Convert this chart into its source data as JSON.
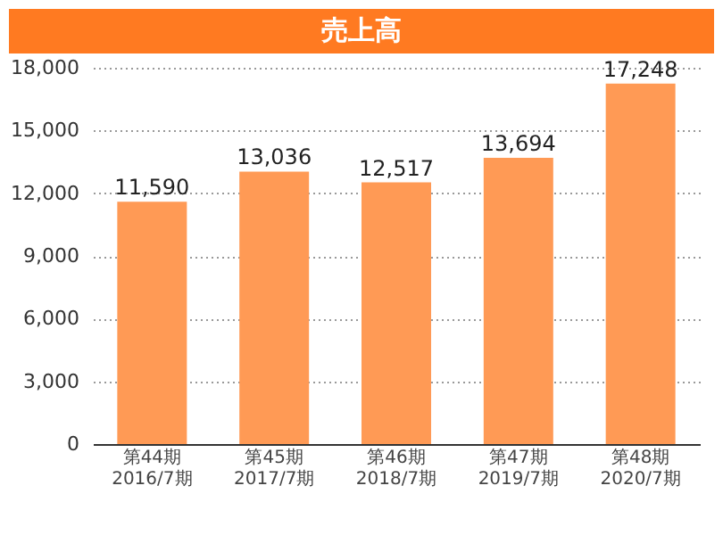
{
  "chart_data": {
    "type": "bar",
    "title": "売上高",
    "categories": [
      "第44期\n2016/7期",
      "第45期\n2017/7期",
      "第46期\n2018/7期",
      "第47期\n2019/7期",
      "第48期\n2020/7期"
    ],
    "values": [
      11590,
      13036,
      12517,
      13694,
      17248
    ],
    "value_labels": [
      "11,590",
      "13,036",
      "12,517",
      "13,694",
      "17,248"
    ],
    "color": "#ff9a55",
    "ylim": [
      0,
      18000
    ],
    "yticks": [
      0,
      {
        "value": 3000,
        "label": "3,000"
      },
      {
        "value": 6000,
        "label": "6,000"
      },
      {
        "value": 9000,
        "label": "9,000"
      },
      {
        "value": 12000,
        "label": "12,000"
      },
      {
        "value": 15000,
        "label": "15,000"
      },
      {
        "value": 18000,
        "label": "18,000"
      }
    ],
    "grid": "y"
  }
}
